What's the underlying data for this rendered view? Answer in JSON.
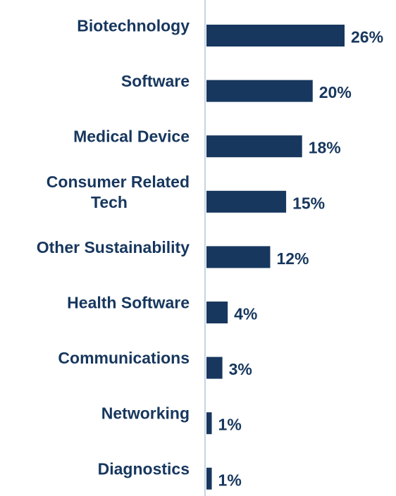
{
  "chart_data": {
    "type": "bar",
    "orientation": "horizontal",
    "categories": [
      "Biotechnology",
      "Software",
      "Medical Device",
      "Consumer Related Tech",
      "Other Sustainability",
      "Health Software",
      "Communications",
      "Networking",
      "Diagnostics"
    ],
    "category_lines": [
      [
        "Biotechnology"
      ],
      [
        "Software"
      ],
      [
        "Medical Device"
      ],
      [
        "Consumer Related",
        "Tech"
      ],
      [
        "Other Sustainability"
      ],
      [
        "Health Software"
      ],
      [
        "Communications"
      ],
      [
        "Networking"
      ],
      [
        "Diagnostics"
      ]
    ],
    "values": [
      26,
      20,
      18,
      15,
      12,
      4,
      3,
      1,
      1
    ],
    "value_labels": [
      "26%",
      "20%",
      "18%",
      "15%",
      "12%",
      "4%",
      "3%",
      "1%",
      "1%"
    ],
    "unit": "%",
    "xlim": [
      0,
      26
    ],
    "title": "",
    "xlabel": "",
    "ylabel": "",
    "grid": false,
    "legend": "none",
    "colors": {
      "bar": "#17375e",
      "label": "#17375e",
      "axis": "#c5d4e2"
    }
  }
}
